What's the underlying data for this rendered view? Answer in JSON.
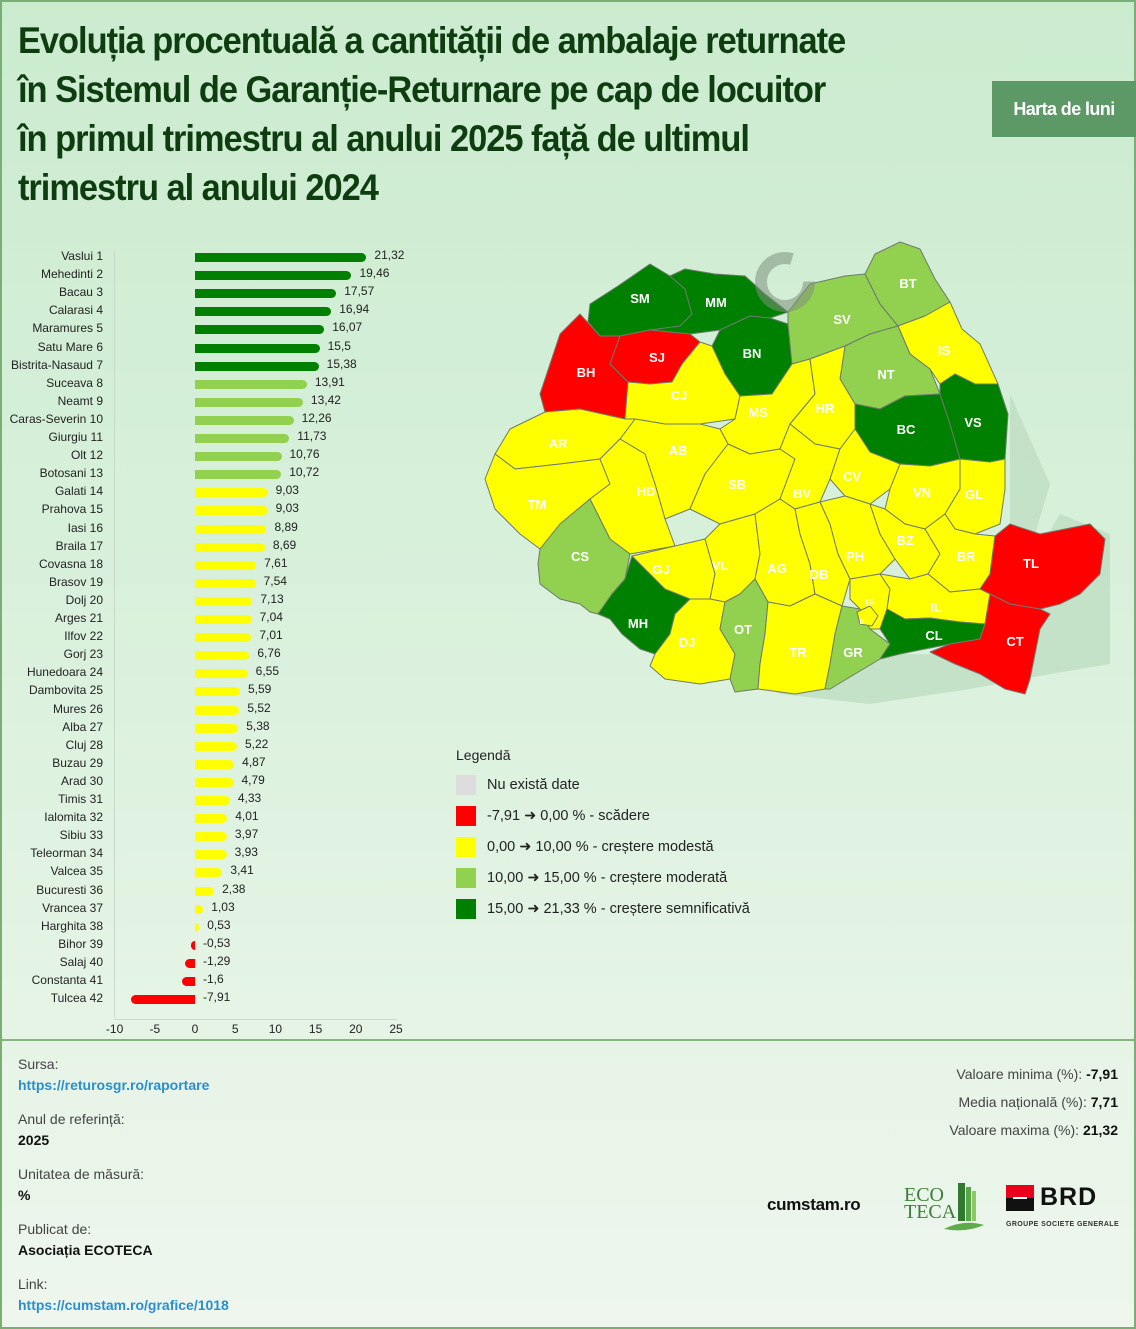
{
  "header": {
    "title_lines": [
      "Evoluția procentuală a cantității de ambalaje returnate",
      "în Sistemul de Garanție-Returnare pe cap de locuitor",
      "în primul trimestru al anului 2025 față de ultimul",
      "trimestru al anului 2024"
    ],
    "badge": "Harta de luni"
  },
  "colors": {
    "decrease": "#ff0000",
    "modest": "#ffff00",
    "moderate": "#92d050",
    "significant": "#008000",
    "no_data": "#dddddd",
    "title": "#0e3d10",
    "badge_bg": "#5d9966",
    "link": "#2a8fcc"
  },
  "chart_data": {
    "type": "bar",
    "orientation": "horizontal",
    "title": "Evoluția procentuală a cantității de ambalaje returnate în Sistemul de Garanție-Returnare pe cap de locuitor în primul trimestru al anului 2025 față de ultimul trimestru al anului 2024",
    "xlabel": "",
    "ylabel": "",
    "xlim": [
      -10,
      25
    ],
    "x_ticks": [
      "-10",
      "-5",
      "0",
      "5",
      "10",
      "15",
      "20",
      "25"
    ],
    "grid": false,
    "unit": "%",
    "categories": [
      "Vaslui 1",
      "Mehedinti 2",
      "Bacau 3",
      "Calarasi 4",
      "Maramures 5",
      "Satu Mare 6",
      "Bistrita-Nasaud 7",
      "Suceava 8",
      "Neamt 9",
      "Caras-Severin 10",
      "Giurgiu 11",
      "Olt 12",
      "Botosani 13",
      "Galati 14",
      "Prahova 15",
      "Iasi 16",
      "Braila 17",
      "Covasna 18",
      "Brasov 19",
      "Dolj 20",
      "Arges 21",
      "Ilfov 22",
      "Gorj 23",
      "Hunedoara 24",
      "Dambovita 25",
      "Mures 26",
      "Alba 27",
      "Cluj 28",
      "Buzau 29",
      "Arad 30",
      "Timis 31",
      "Ialomita 32",
      "Sibiu 33",
      "Teleorman 34",
      "Valcea 35",
      "Bucuresti 36",
      "Vrancea 37",
      "Harghita 38",
      "Bihor 39",
      "Salaj 40",
      "Constanta 41",
      "Tulcea 42"
    ],
    "values": [
      21.32,
      19.46,
      17.57,
      16.94,
      16.07,
      15.5,
      15.38,
      13.91,
      13.42,
      12.26,
      11.73,
      10.76,
      10.72,
      9.03,
      9.03,
      8.89,
      8.69,
      7.61,
      7.54,
      7.13,
      7.04,
      7.01,
      6.76,
      6.55,
      5.59,
      5.52,
      5.38,
      5.22,
      4.87,
      4.79,
      4.33,
      4.01,
      3.97,
      3.93,
      3.41,
      2.38,
      1.03,
      0.53,
      -0.53,
      -1.29,
      -1.6,
      -7.91
    ],
    "value_labels": [
      "21,32",
      "19,46",
      "17,57",
      "16,94",
      "16,07",
      "15,5",
      "15,38",
      "13,91",
      "13,42",
      "12,26",
      "11,73",
      "10,76",
      "10,72",
      "9,03",
      "9,03",
      "8,89",
      "8,69",
      "7,61",
      "7,54",
      "7,13",
      "7,04",
      "7,01",
      "6,76",
      "6,55",
      "5,59",
      "5,52",
      "5,38",
      "5,22",
      "4,87",
      "4,79",
      "4,33",
      "4,01",
      "3,97",
      "3,93",
      "3,41",
      "2,38",
      "1,03",
      "0,53",
      "-0,53",
      "-1,29",
      "-1,6",
      "-7,91"
    ],
    "color_bins": [
      {
        "min": -7.91,
        "max": 0,
        "color": "#ff0000"
      },
      {
        "min": 0,
        "max": 10,
        "color": "#ffff00"
      },
      {
        "min": 10,
        "max": 15,
        "color": "#92d050"
      },
      {
        "min": 15,
        "max": 21.33,
        "color": "#008000"
      }
    ]
  },
  "map": {
    "counties": [
      {
        "code": "SM",
        "class": "significant"
      },
      {
        "code": "MM",
        "class": "significant"
      },
      {
        "code": "BN",
        "class": "significant"
      },
      {
        "code": "BH",
        "class": "decrease"
      },
      {
        "code": "SJ",
        "class": "decrease"
      },
      {
        "code": "CJ",
        "class": "modest"
      },
      {
        "code": "BT",
        "class": "moderate"
      },
      {
        "code": "SV",
        "class": "moderate"
      },
      {
        "code": "NT",
        "class": "moderate"
      },
      {
        "code": "IS",
        "class": "modest"
      },
      {
        "code": "BC",
        "class": "significant"
      },
      {
        "code": "VS",
        "class": "significant"
      },
      {
        "code": "MS",
        "class": "modest"
      },
      {
        "code": "HR",
        "class": "modest"
      },
      {
        "code": "AR",
        "class": "modest"
      },
      {
        "code": "AB",
        "class": "modest"
      },
      {
        "code": "TM",
        "class": "modest"
      },
      {
        "code": "HD",
        "class": "modest"
      },
      {
        "code": "SB",
        "class": "modest"
      },
      {
        "code": "BV",
        "class": "modest"
      },
      {
        "code": "CV",
        "class": "modest"
      },
      {
        "code": "VN",
        "class": "modest"
      },
      {
        "code": "GL",
        "class": "modest"
      },
      {
        "code": "CS",
        "class": "moderate"
      },
      {
        "code": "GJ",
        "class": "modest"
      },
      {
        "code": "VL",
        "class": "modest"
      },
      {
        "code": "AG",
        "class": "modest"
      },
      {
        "code": "DB",
        "class": "modest"
      },
      {
        "code": "PH",
        "class": "modest"
      },
      {
        "code": "BZ",
        "class": "modest"
      },
      {
        "code": "BR",
        "class": "modest"
      },
      {
        "code": "TL",
        "class": "decrease"
      },
      {
        "code": "MH",
        "class": "significant"
      },
      {
        "code": "DJ",
        "class": "modest"
      },
      {
        "code": "OT",
        "class": "moderate"
      },
      {
        "code": "TR",
        "class": "modest"
      },
      {
        "code": "GR",
        "class": "moderate"
      },
      {
        "code": "IF",
        "class": "modest"
      },
      {
        "code": "B",
        "class": "modest"
      },
      {
        "code": "IL",
        "class": "modest"
      },
      {
        "code": "CL",
        "class": "significant"
      },
      {
        "code": "CT",
        "class": "decrease"
      }
    ]
  },
  "legend": {
    "title": "Legendă",
    "items": [
      {
        "label": "Nu există date",
        "color": "#dddddd"
      },
      {
        "label": "-7,91 ➜ 0,00 % - scădere",
        "color": "#ff0000"
      },
      {
        "label": "0,00 ➜ 10,00 % - creștere modestă",
        "color": "#ffff00"
      },
      {
        "label": "10,00 ➜ 15,00 % - creștere moderată",
        "color": "#92d050"
      },
      {
        "label": "15,00 ➜ 21,33 % - creștere semnificativă",
        "color": "#008000"
      }
    ]
  },
  "footer": {
    "source_label": "Sursa:",
    "source_link": "https://returosgr.ro/raportare",
    "year_label": "Anul de referință:",
    "year_value": "2025",
    "unit_label": "Unitatea de măsură:",
    "unit_value": "%",
    "publisher_label": "Publicat de:",
    "publisher_value": "Asociația ECOTECA",
    "link_label": "Link:",
    "link_value": "https://cumstam.ro/grafice/1018",
    "stats": [
      {
        "label": "Valoare minima (%): ",
        "value": "-7,91"
      },
      {
        "label": "Media națională (%): ",
        "value": "7,71"
      },
      {
        "label": "Valoare maxima (%): ",
        "value": "21,32"
      }
    ],
    "logos": {
      "cumstam": "cumstam.ro",
      "ecoteca_line1": "ECO",
      "ecoteca_line2": "TECA",
      "brd": "BRD",
      "brd_sub": "GROUPE SOCIETE GENERALE"
    }
  }
}
